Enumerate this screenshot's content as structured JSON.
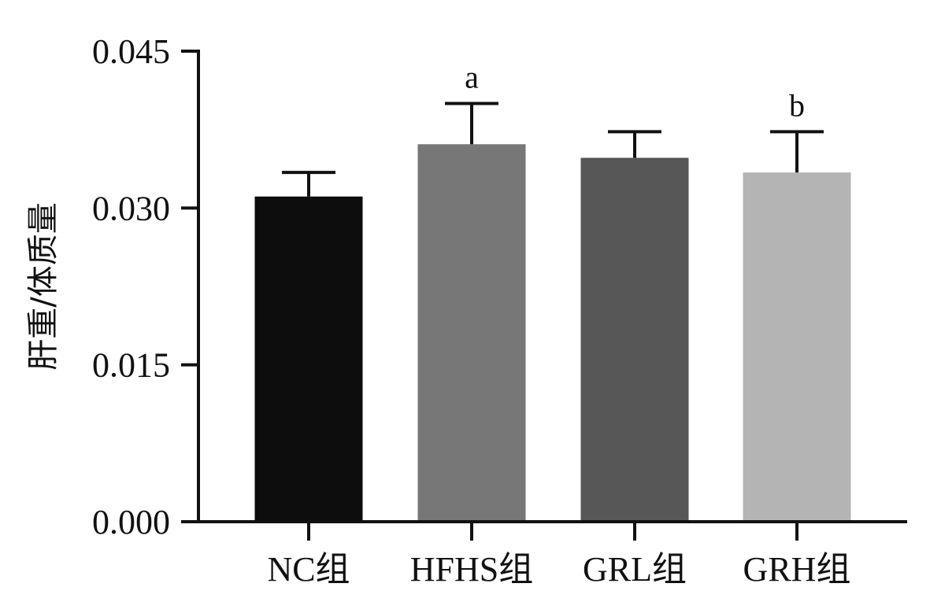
{
  "chart_data": {
    "type": "bar",
    "title": "",
    "xlabel": "",
    "ylabel": "肝重/体质量",
    "categories": [
      "NC组",
      "HFHS组",
      "GRL组",
      "GRH组"
    ],
    "values": [
      0.0311,
      0.0361,
      0.0348,
      0.0334
    ],
    "error_upper": [
      0.0334,
      0.04,
      0.0373,
      0.0373
    ],
    "annotations": [
      "",
      "a",
      "",
      "b"
    ],
    "colors": [
      "#0d0d0d",
      "#777777",
      "#575757",
      "#b4b4b4"
    ],
    "ylim": [
      0,
      0.045
    ],
    "yticks": [
      "0.000",
      "0.015",
      "0.030",
      "0.045"
    ],
    "ytick_values": [
      0,
      0.015,
      0.03,
      0.045
    ],
    "grid": false,
    "legend": "none"
  }
}
